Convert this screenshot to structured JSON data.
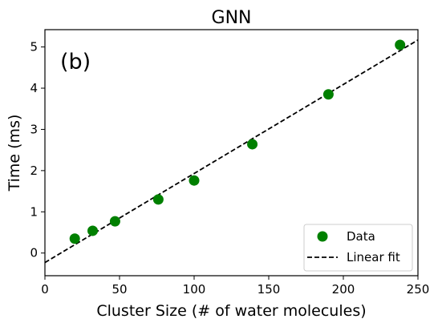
{
  "chart_data": {
    "type": "scatter",
    "title": "GNN",
    "panel_label": "(b)",
    "xlabel": "Cluster Size (# of water molecules)",
    "ylabel": "Time (ms)",
    "xlim": [
      0,
      250
    ],
    "ylim": [
      -0.55,
      5.42
    ],
    "xticks": [
      0,
      50,
      100,
      150,
      200,
      250
    ],
    "yticks": [
      0,
      1,
      2,
      3,
      4,
      5
    ],
    "grid": false,
    "legend_position": "bottom-right",
    "series": [
      {
        "name": "Data",
        "kind": "scatter",
        "color": "#008000",
        "x": [
          20,
          32,
          47,
          76,
          100,
          139,
          190,
          238
        ],
        "y": [
          0.35,
          0.54,
          0.77,
          1.3,
          1.76,
          2.64,
          3.85,
          5.05
        ]
      },
      {
        "name": "Linear fit",
        "kind": "line",
        "style": "dashed",
        "color": "#000000",
        "x": [
          0,
          250
        ],
        "y": [
          -0.23,
          5.17
        ]
      }
    ]
  }
}
